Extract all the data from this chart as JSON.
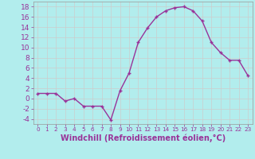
{
  "x": [
    0,
    1,
    2,
    3,
    4,
    5,
    6,
    7,
    8,
    9,
    10,
    11,
    12,
    13,
    14,
    15,
    16,
    17,
    18,
    19,
    20,
    21,
    22,
    23
  ],
  "y": [
    1,
    1,
    1,
    -0.5,
    0,
    -1.5,
    -1.5,
    -1.5,
    -4.2,
    1.5,
    5,
    11,
    13.8,
    16,
    17.2,
    17.8,
    18,
    17.2,
    15.2,
    11,
    9,
    7.5,
    7.5,
    4.5
  ],
  "line_color": "#993399",
  "marker": "+",
  "bg_color": "#b2eded",
  "grid_color": "#cccccc",
  "xlabel": "Windchill (Refroidissement éolien,°C)",
  "xlim": [
    -0.5,
    23.5
  ],
  "ylim": [
    -5,
    19
  ],
  "yticks": [
    -4,
    -2,
    0,
    2,
    4,
    6,
    8,
    10,
    12,
    14,
    16,
    18
  ],
  "xticks": [
    0,
    1,
    2,
    3,
    4,
    5,
    6,
    7,
    8,
    9,
    10,
    11,
    12,
    13,
    14,
    15,
    16,
    17,
    18,
    19,
    20,
    21,
    22,
    23
  ],
  "xlabel_fontsize": 7,
  "tick_fontsize": 6.5,
  "line_width": 1.0,
  "marker_size": 3.5
}
